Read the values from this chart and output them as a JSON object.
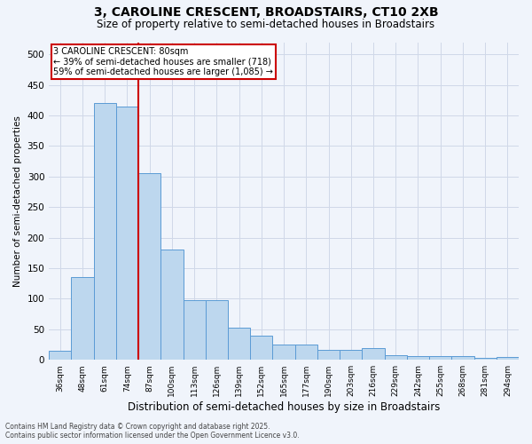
{
  "title1": "3, CAROLINE CRESCENT, BROADSTAIRS, CT10 2XB",
  "title2": "Size of property relative to semi-detached houses in Broadstairs",
  "xlabel": "Distribution of semi-detached houses by size in Broadstairs",
  "ylabel": "Number of semi-detached properties",
  "categories": [
    "36sqm",
    "48sqm",
    "61sqm",
    "74sqm",
    "87sqm",
    "100sqm",
    "113sqm",
    "126sqm",
    "139sqm",
    "152sqm",
    "165sqm",
    "177sqm",
    "190sqm",
    "203sqm",
    "216sqm",
    "229sqm",
    "242sqm",
    "255sqm",
    "268sqm",
    "281sqm",
    "294sqm"
  ],
  "values": [
    15,
    135,
    420,
    415,
    305,
    180,
    97,
    97,
    53,
    40,
    25,
    25,
    16,
    16,
    19,
    7,
    6,
    6,
    6,
    3,
    4
  ],
  "bar_color": "#bdd7ee",
  "bar_edge_color": "#5b9bd5",
  "red_line_x": 3.5,
  "annotation_title": "3 CAROLINE CRESCENT: 80sqm",
  "annotation_line1": "← 39% of semi-detached houses are smaller (718)",
  "annotation_line2": "59% of semi-detached houses are larger (1,085) →",
  "annotation_box_color": "#ffffff",
  "annotation_box_edge": "#cc0000",
  "footnote1": "Contains HM Land Registry data © Crown copyright and database right 2025.",
  "footnote2": "Contains public sector information licensed under the Open Government Licence v3.0.",
  "ylim": [
    0,
    520
  ],
  "yticks": [
    0,
    50,
    100,
    150,
    200,
    250,
    300,
    350,
    400,
    450,
    500
  ],
  "grid_color": "#d0d8e8",
  "bg_color": "#f0f4fb",
  "title1_fontsize": 10,
  "title2_fontsize": 8.5,
  "ylabel_fontsize": 7.5,
  "xlabel_fontsize": 8.5,
  "annotation_fontsize": 7,
  "tick_fontsize": 6.5,
  "ytick_fontsize": 7.5
}
